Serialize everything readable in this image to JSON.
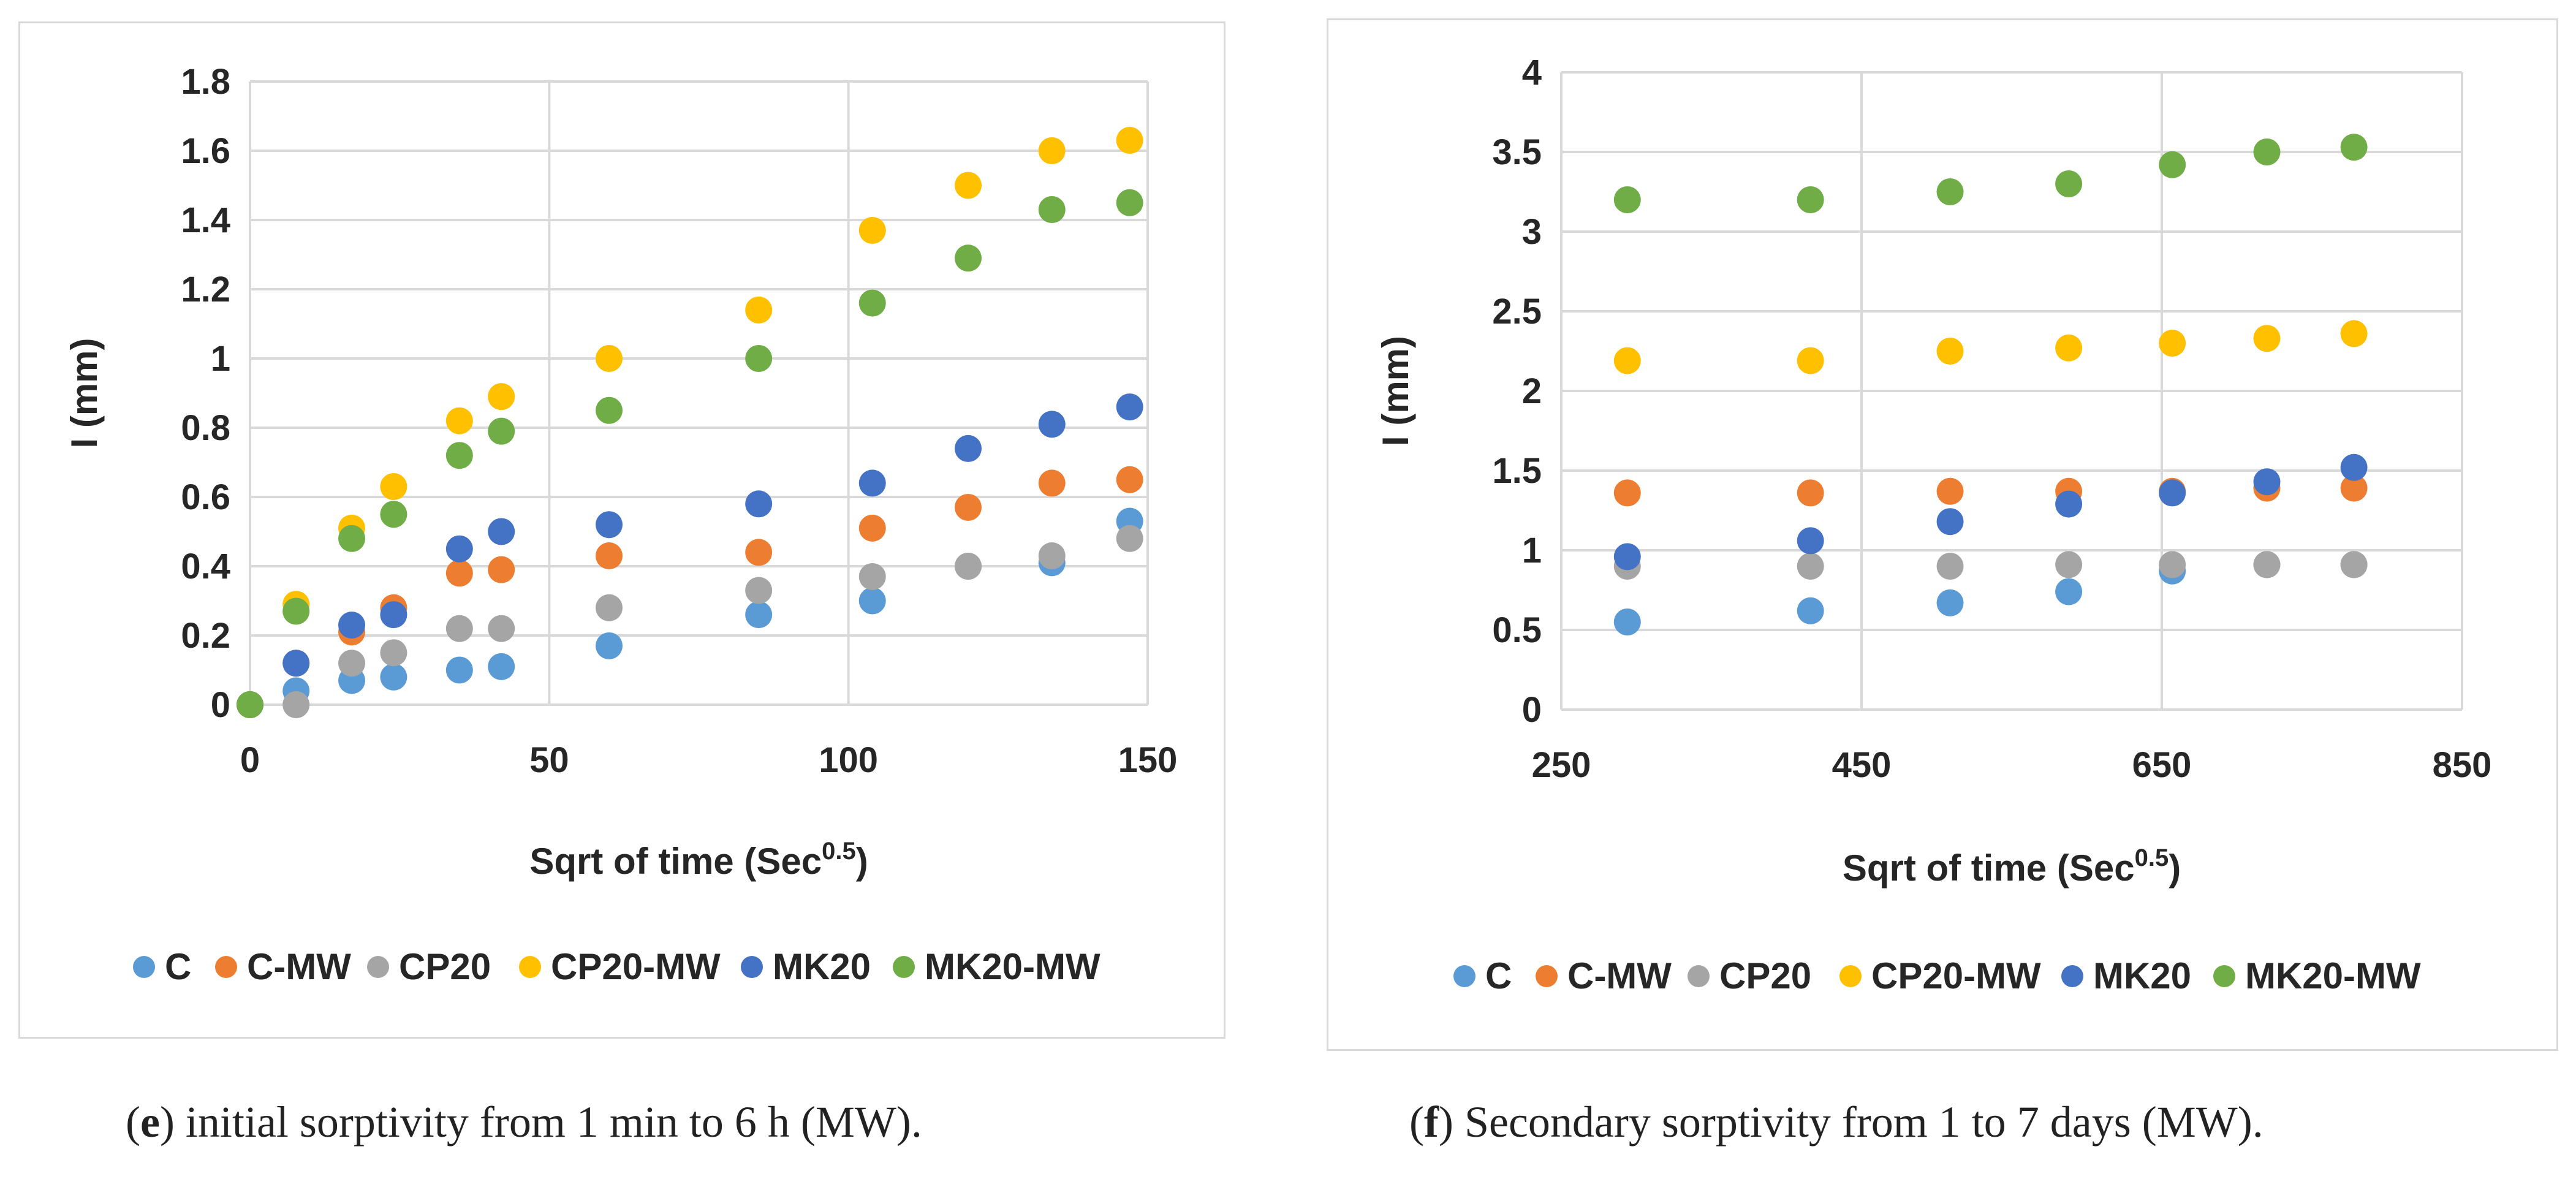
{
  "colors": {
    "C": "#5b9bd5",
    "C-MW": "#ed7d31",
    "CP20": "#a5a5a5",
    "CP20-MW": "#ffc000",
    "MK20": "#4472c4",
    "MK20-MW": "#70ad47"
  },
  "chart_data": [
    {
      "type": "scatter",
      "xlabel_main": "Sqrt of time (Sec",
      "xlabel_sup": "0.5",
      "xlabel_end": ")",
      "ylabel": "I (mm)",
      "xlim": [
        0,
        150
      ],
      "ylim": [
        0,
        1.8
      ],
      "x_ticks": [
        "0",
        "50",
        "100",
        "150"
      ],
      "y_ticks": [
        "0",
        "0.2",
        "0.4",
        "0.6",
        "0.8",
        "1",
        "1.2",
        "1.4",
        "1.6",
        "1.8"
      ],
      "x": [
        0,
        7.7,
        17,
        24,
        35,
        42,
        60,
        85,
        104,
        120,
        134,
        147
      ],
      "series": [
        {
          "name": "C",
          "values": [
            0,
            0.04,
            0.07,
            0.08,
            0.1,
            0.11,
            0.17,
            0.26,
            0.3,
            0.4,
            0.41,
            0.53
          ]
        },
        {
          "name": "C-MW",
          "values": [
            0,
            0.12,
            0.21,
            0.28,
            0.38,
            0.39,
            0.43,
            0.44,
            0.51,
            0.57,
            0.64,
            0.65
          ]
        },
        {
          "name": "CP20",
          "values": [
            0,
            0.0,
            0.12,
            0.15,
            0.22,
            0.22,
            0.28,
            0.33,
            0.37,
            0.4,
            0.43,
            0.48
          ]
        },
        {
          "name": "CP20-MW",
          "values": [
            0,
            0.29,
            0.51,
            0.63,
            0.82,
            0.89,
            1.0,
            1.14,
            1.37,
            1.5,
            1.6,
            1.63
          ]
        },
        {
          "name": "MK20",
          "values": [
            0,
            0.12,
            0.23,
            0.26,
            0.45,
            0.5,
            0.52,
            0.58,
            0.64,
            0.74,
            0.81,
            0.86
          ]
        },
        {
          "name": "MK20-MW",
          "values": [
            0,
            0.27,
            0.48,
            0.55,
            0.72,
            0.79,
            0.85,
            1.0,
            1.16,
            1.29,
            1.43,
            1.45
          ]
        }
      ]
    },
    {
      "type": "scatter",
      "xlabel_main": "Sqrt of time (Sec",
      "xlabel_sup": "0.5",
      "xlabel_end": ")",
      "ylabel": "I (mm)",
      "xlim": [
        250,
        850
      ],
      "ylim": [
        0,
        4
      ],
      "x_ticks": [
        "250",
        "450",
        "650",
        "850"
      ],
      "y_ticks": [
        "0",
        "0.5",
        "1",
        "1.5",
        "2",
        "2.5",
        "3",
        "3.5",
        "4"
      ],
      "x": [
        294,
        416,
        509,
        588,
        657,
        720,
        778
      ],
      "series": [
        {
          "name": "C",
          "values": [
            0.55,
            0.62,
            0.67,
            0.74,
            0.87,
            0.91,
            0.91
          ]
        },
        {
          "name": "C-MW",
          "values": [
            1.36,
            1.36,
            1.37,
            1.37,
            1.37,
            1.39,
            1.39
          ]
        },
        {
          "name": "CP20",
          "values": [
            0.9,
            0.9,
            0.9,
            0.91,
            0.91,
            0.91,
            0.91
          ]
        },
        {
          "name": "CP20-MW",
          "values": [
            2.19,
            2.19,
            2.25,
            2.27,
            2.3,
            2.33,
            2.36
          ]
        },
        {
          "name": "MK20",
          "values": [
            0.96,
            1.06,
            1.18,
            1.29,
            1.36,
            1.43,
            1.52
          ]
        },
        {
          "name": "MK20-MW",
          "values": [
            3.2,
            3.2,
            3.25,
            3.3,
            3.42,
            3.5,
            3.53
          ]
        }
      ]
    }
  ],
  "legend": [
    "C",
    "C-MW",
    "CP20",
    "CP20-MW",
    "MK20",
    "MK20-MW"
  ],
  "captions": {
    "e_letter": "e",
    "e_text": ") initial sorptivity from 1 min to 6 h (MW).",
    "f_letter": "f",
    "f_text": ") Secondary sorptivity from 1 to 7 days (MW)."
  }
}
